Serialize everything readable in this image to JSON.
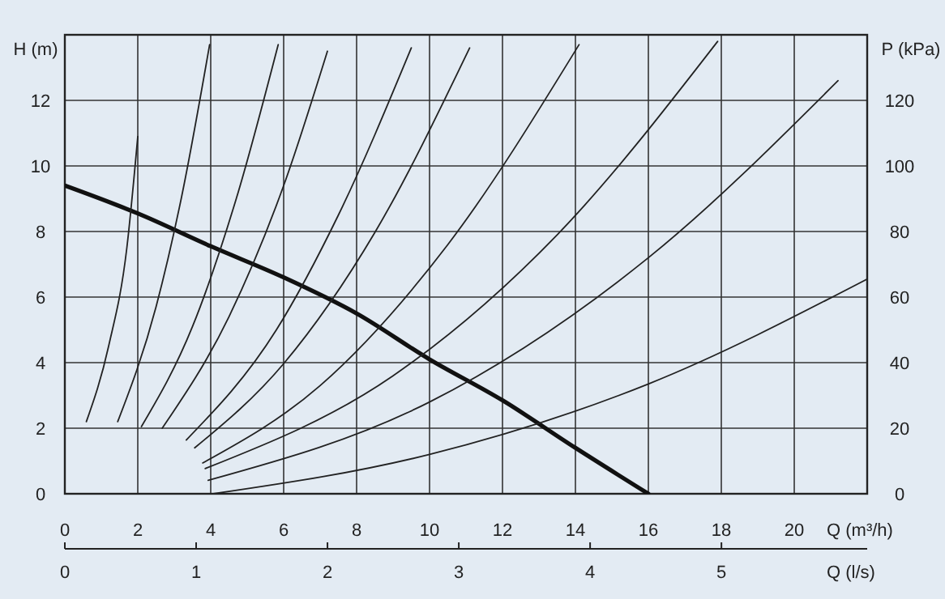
{
  "chart_data": {
    "type": "line",
    "xlabel": "Q (m³/h)",
    "ylabel": "H (m)",
    "y2label": "P (kPa)",
    "x2label": "Q (l/s)",
    "xlim": [
      0,
      22
    ],
    "xticks": [
      0,
      2,
      4,
      6,
      8,
      10,
      12,
      14,
      16,
      18,
      20
    ],
    "ylim": [
      0,
      14
    ],
    "yticks": [
      0,
      2,
      4,
      6,
      8,
      10,
      12
    ],
    "y2lim": [
      0,
      140
    ],
    "y2ticks": [
      0,
      20,
      40,
      60,
      80,
      100,
      120
    ],
    "x2lim": [
      0,
      6.11
    ],
    "x2ticks": [
      0,
      1,
      2,
      3,
      4,
      5
    ],
    "grid": true,
    "series": [
      {
        "color": "#111111",
        "x": [
          0,
          2,
          4,
          6,
          8,
          10,
          12,
          14,
          16
        ],
        "values": [
          9.4,
          8.55,
          7.55,
          6.6,
          5.5,
          4.1,
          2.85,
          1.4,
          0
        ]
      },
      {
        "color": "#222222",
        "x": [
          0.59,
          1.2,
          1.7,
          2.0
        ],
        "values": [
          2.2,
          4.5,
          7.5,
          10.9
        ]
      },
      {
        "color": "#222222",
        "x": [
          1.45,
          2.5,
          3.2,
          3.97
        ],
        "values": [
          2.2,
          5.7,
          9.05,
          13.7
        ]
      },
      {
        "color": "#222222",
        "x": [
          2.1,
          3.5,
          4.7,
          5.85
        ],
        "values": [
          2.05,
          5.1,
          9.0,
          13.7
        ]
      },
      {
        "color": "#222222",
        "x": [
          2.67,
          4.5,
          6,
          7.2
        ],
        "values": [
          2.0,
          5.4,
          9.4,
          13.5
        ]
      },
      {
        "color": "#222222",
        "x": [
          3.33,
          5.8,
          7.5,
          9.5
        ],
        "values": [
          1.64,
          5.0,
          8.5,
          13.6
        ]
      },
      {
        "color": "#222222",
        "x": [
          3.56,
          6,
          8.5,
          11.1
        ],
        "values": [
          1.4,
          3.97,
          7.97,
          13.6
        ]
      },
      {
        "color": "#222222",
        "x": [
          3.78,
          7,
          10.5,
          14.1
        ],
        "values": [
          0.94,
          3.3,
          7.6,
          13.7
        ]
      },
      {
        "color": "#222222",
        "x": [
          3.85,
          9,
          13.5,
          17.9
        ],
        "values": [
          0.77,
          3.6,
          7.9,
          13.8
        ]
      },
      {
        "color": "#222222",
        "x": [
          3.93,
          10,
          16,
          21.2
        ],
        "values": [
          0.41,
          2.8,
          7.2,
          12.6
        ]
      },
      {
        "color": "#222222",
        "x": [
          4.07,
          10,
          16,
          22
        ],
        "values": [
          0,
          1.2,
          3.35,
          6.55
        ]
      }
    ]
  }
}
